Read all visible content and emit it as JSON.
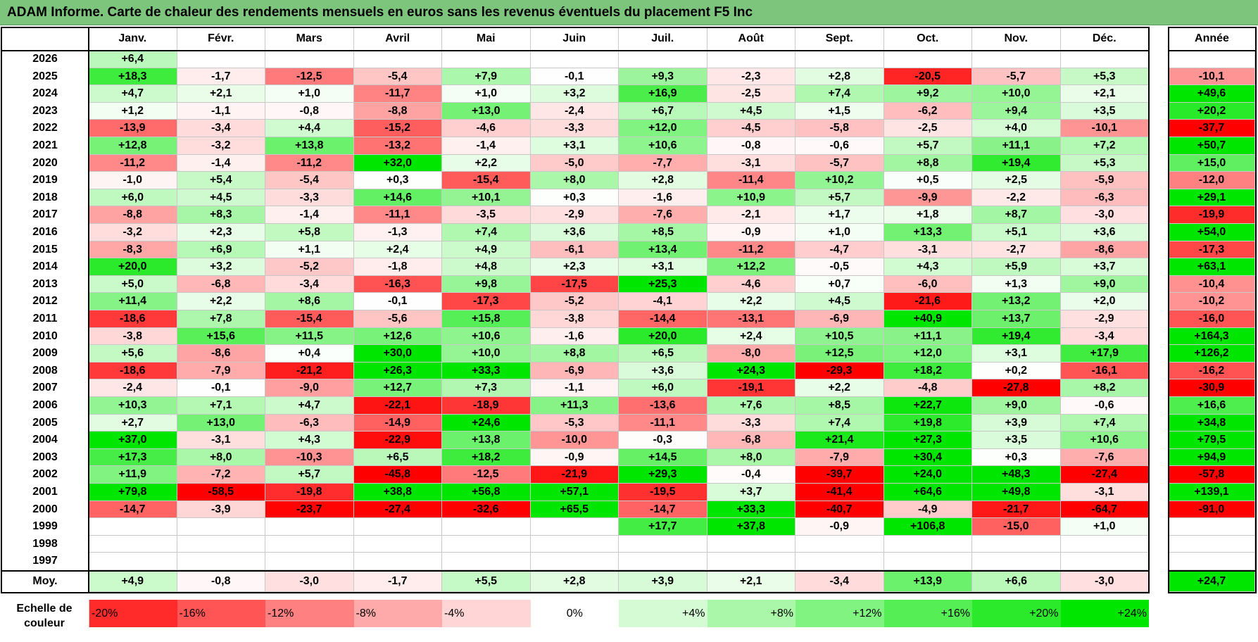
{
  "title": "ADAM Informe. Carte de chaleur des rendements mensuels en euros sans les revenus éventuels du placement F5 Inc",
  "colors": {
    "title_bg": "#7dc57d",
    "red_max": "#ff0000",
    "white": "#ffffff",
    "green_max": "#00e600"
  },
  "chart_data": {
    "type": "heatmap",
    "title": "ADAM Informe. Carte de chaleur des rendements mensuels en euros sans les revenus éventuels du placement F5 Inc",
    "months": [
      "Janv.",
      "Févr.",
      "Mars",
      "Avril",
      "Mai",
      "Juin",
      "Juil.",
      "Août",
      "Sept.",
      "Oct.",
      "Nov.",
      "Déc."
    ],
    "annual_header": "Année",
    "rows": [
      {
        "year": "2026",
        "values": [
          "+6,4",
          "",
          "",
          "",
          "",
          "",
          "",
          "",
          "",
          "",
          "",
          ""
        ],
        "annual": ""
      },
      {
        "year": "2025",
        "values": [
          "+18,3",
          "-1,7",
          "-12,5",
          "-5,4",
          "+7,9",
          "-0,1",
          "+9,3",
          "-2,3",
          "+2,8",
          "-20,5",
          "-5,7",
          "+5,3"
        ],
        "annual": "-10,1"
      },
      {
        "year": "2024",
        "values": [
          "+4,7",
          "+2,1",
          "+1,0",
          "-11,7",
          "+1,0",
          "+3,2",
          "+16,9",
          "-2,5",
          "+7,4",
          "+9,2",
          "+10,0",
          "+2,1"
        ],
        "annual": "+49,6"
      },
      {
        "year": "2023",
        "values": [
          "+1,2",
          "-1,1",
          "-0,8",
          "-8,8",
          "+13,0",
          "-2,4",
          "+6,7",
          "+4,5",
          "+1,5",
          "-6,2",
          "+9,4",
          "+3,5"
        ],
        "annual": "+20,2"
      },
      {
        "year": "2022",
        "values": [
          "-13,9",
          "-3,4",
          "+4,4",
          "-15,2",
          "-4,6",
          "-3,3",
          "+12,0",
          "-4,5",
          "-5,8",
          "-2,5",
          "+4,0",
          "-10,1"
        ],
        "annual": "-37,7"
      },
      {
        "year": "2021",
        "values": [
          "+12,8",
          "-3,2",
          "+13,8",
          "-13,2",
          "-1,4",
          "+3,1",
          "+10,6",
          "-0,8",
          "-0,6",
          "+5,7",
          "+11,1",
          "+7,2"
        ],
        "annual": "+50,7"
      },
      {
        "year": "2020",
        "values": [
          "-11,2",
          "-1,4",
          "-11,2",
          "+32,0",
          "+2,2",
          "-5,0",
          "-7,7",
          "-3,1",
          "-5,7",
          "+8,8",
          "+19,4",
          "+5,3"
        ],
        "annual": "+15,0"
      },
      {
        "year": "2019",
        "values": [
          "-1,0",
          "+5,4",
          "-5,4",
          "+0,3",
          "-15,4",
          "+8,0",
          "+2,8",
          "-11,4",
          "+10,2",
          "+0,5",
          "+2,5",
          "-5,9"
        ],
        "annual": "-12,0"
      },
      {
        "year": "2018",
        "values": [
          "+6,0",
          "+4,5",
          "-3,3",
          "+14,6",
          "+10,1",
          "+0,3",
          "-1,6",
          "+10,9",
          "+5,7",
          "-9,9",
          "-2,2",
          "-6,3"
        ],
        "annual": "+29,1"
      },
      {
        "year": "2017",
        "values": [
          "-8,8",
          "+8,3",
          "-1,4",
          "-11,1",
          "-3,5",
          "-2,9",
          "-7,6",
          "-2,1",
          "+1,7",
          "+1,8",
          "+8,7",
          "-3,0"
        ],
        "annual": "-19,9"
      },
      {
        "year": "2016",
        "values": [
          "-3,2",
          "+2,3",
          "+5,8",
          "-1,3",
          "+7,4",
          "+3,6",
          "+8,5",
          "-0,9",
          "+1,0",
          "+13,3",
          "+5,1",
          "+3,6"
        ],
        "annual": "+54,0"
      },
      {
        "year": "2015",
        "values": [
          "-8,3",
          "+6,9",
          "+1,1",
          "+2,4",
          "+4,9",
          "-6,1",
          "+13,4",
          "-11,2",
          "-4,7",
          "-3,1",
          "-2,7",
          "-8,6"
        ],
        "annual": "-17,3"
      },
      {
        "year": "2014",
        "values": [
          "+20,0",
          "+3,2",
          "-5,2",
          "-1,8",
          "+4,8",
          "+2,3",
          "+3,1",
          "+12,2",
          "-0,5",
          "+4,3",
          "+5,9",
          "+3,7"
        ],
        "annual": "+63,1"
      },
      {
        "year": "2013",
        "values": [
          "+5,0",
          "-6,8",
          "-3,4",
          "-16,3",
          "+9,8",
          "-17,5",
          "+25,3",
          "-4,6",
          "+0,7",
          "-6,0",
          "+1,3",
          "+9,0"
        ],
        "annual": "-10,4"
      },
      {
        "year": "2012",
        "values": [
          "+11,4",
          "+2,2",
          "+8,6",
          "-0,1",
          "-17,3",
          "-5,2",
          "-4,1",
          "+2,2",
          "+4,5",
          "-21,6",
          "+13,2",
          "+2,0"
        ],
        "annual": "-10,2"
      },
      {
        "year": "2011",
        "values": [
          "-18,6",
          "+7,8",
          "-15,4",
          "-5,6",
          "+15,8",
          "-3,8",
          "-14,4",
          "-13,1",
          "-6,9",
          "+40,9",
          "+13,7",
          "-2,9"
        ],
        "annual": "-16,0"
      },
      {
        "year": "2010",
        "values": [
          "-3,8",
          "+15,6",
          "+11,5",
          "+12,6",
          "+10,6",
          "-1,6",
          "+20,0",
          "+2,4",
          "+10,5",
          "+11,1",
          "+19,4",
          "-3,4"
        ],
        "annual": "+164,3"
      },
      {
        "year": "2009",
        "values": [
          "+5,6",
          "-8,6",
          "+0,4",
          "+30,0",
          "+10,0",
          "+8,8",
          "+6,5",
          "-8,0",
          "+12,5",
          "+12,0",
          "+3,1",
          "+17,9"
        ],
        "annual": "+126,2"
      },
      {
        "year": "2008",
        "values": [
          "-18,6",
          "-7,9",
          "-21,2",
          "+26,3",
          "+33,3",
          "-6,9",
          "+3,6",
          "+24,3",
          "-29,3",
          "+18,2",
          "+0,2",
          "-16,1"
        ],
        "annual": "-16,2"
      },
      {
        "year": "2007",
        "values": [
          "-2,4",
          "-0,1",
          "-9,0",
          "+12,7",
          "+7,3",
          "-1,1",
          "+6,0",
          "-19,1",
          "+2,2",
          "-4,8",
          "-27,8",
          "+8,2"
        ],
        "annual": "-30,9"
      },
      {
        "year": "2006",
        "values": [
          "+10,3",
          "+7,1",
          "+4,7",
          "-22,1",
          "-18,9",
          "+11,3",
          "-13,6",
          "+7,6",
          "+8,5",
          "+22,7",
          "+9,0",
          "-0,6"
        ],
        "annual": "+16,6"
      },
      {
        "year": "2005",
        "values": [
          "+2,7",
          "+13,0",
          "-6,3",
          "-14,9",
          "+24,6",
          "-5,3",
          "-11,1",
          "-3,3",
          "+7,4",
          "+19,8",
          "+3,9",
          "+7,4"
        ],
        "annual": "+34,8"
      },
      {
        "year": "2004",
        "values": [
          "+37,0",
          "-3,1",
          "+4,3",
          "-22,9",
          "+13,8",
          "-10,0",
          "-0,3",
          "-6,8",
          "+21,4",
          "+27,3",
          "+3,5",
          "+10,6"
        ],
        "annual": "+79,5"
      },
      {
        "year": "2003",
        "values": [
          "+17,3",
          "+8,0",
          "-10,3",
          "+6,5",
          "+18,2",
          "-0,9",
          "+14,5",
          "+8,0",
          "-7,9",
          "+30,4",
          "+0,3",
          "-7,6"
        ],
        "annual": "+94,9"
      },
      {
        "year": "2002",
        "values": [
          "+11,9",
          "-7,2",
          "+5,7",
          "-45,8",
          "-12,5",
          "-21,9",
          "+29,3",
          "-0,4",
          "-39,7",
          "+24,0",
          "+48,3",
          "-27,4"
        ],
        "annual": "-57,8"
      },
      {
        "year": "2001",
        "values": [
          "+79,8",
          "-58,5",
          "-19,8",
          "+38,8",
          "+56,8",
          "+57,1",
          "-19,5",
          "+3,7",
          "-41,4",
          "+64,6",
          "+49,8",
          "-3,1"
        ],
        "annual": "+139,1"
      },
      {
        "year": "2000",
        "values": [
          "-14,7",
          "-3,9",
          "-23,7",
          "-27,4",
          "-32,6",
          "+65,5",
          "-14,7",
          "+33,3",
          "-40,7",
          "-4,9",
          "-21,7",
          "-64,7"
        ],
        "annual": "-91,0"
      },
      {
        "year": "1999",
        "values": [
          "",
          "",
          "",
          "",
          "",
          "",
          "+17,7",
          "+37,8",
          "-0,9",
          "+106,8",
          "-15,0",
          "+1,0"
        ],
        "annual": ""
      },
      {
        "year": "1998",
        "values": [
          "",
          "",
          "",
          "",
          "",
          "",
          "",
          "",
          "",
          "",
          "",
          ""
        ],
        "annual": ""
      },
      {
        "year": "1997",
        "values": [
          "",
          "",
          "",
          "",
          "",
          "",
          "",
          "",
          "",
          "",
          "",
          ""
        ],
        "annual": ""
      }
    ],
    "average": {
      "label": "Moy.",
      "values": [
        "+4,9",
        "-0,8",
        "-3,0",
        "-1,7",
        "+5,5",
        "+2,8",
        "+3,9",
        "+2,1",
        "-3,4",
        "+13,9",
        "+6,6",
        "-3,0"
      ],
      "annual": "+24,7"
    },
    "scale": {
      "label": "Echelle de couleur",
      "items": [
        {
          "text": "-20%",
          "v": -20,
          "align": "left"
        },
        {
          "text": "-16%",
          "v": -16,
          "align": "left"
        },
        {
          "text": "-12%",
          "v": -12,
          "align": "left"
        },
        {
          "text": "-8%",
          "v": -8,
          "align": "left"
        },
        {
          "text": "-4%",
          "v": -4,
          "align": "left"
        },
        {
          "text": "0%",
          "v": 0,
          "align": "center"
        },
        {
          "text": "+4%",
          "v": 4,
          "align": "right"
        },
        {
          "text": "+8%",
          "v": 8,
          "align": "right"
        },
        {
          "text": "+12%",
          "v": 12,
          "align": "right"
        },
        {
          "text": "+16%",
          "v": 16,
          "align": "right"
        },
        {
          "text": "+20%",
          "v": 20,
          "align": "right"
        },
        {
          "text": "+24%",
          "v": 24,
          "align": "right"
        }
      ]
    }
  }
}
